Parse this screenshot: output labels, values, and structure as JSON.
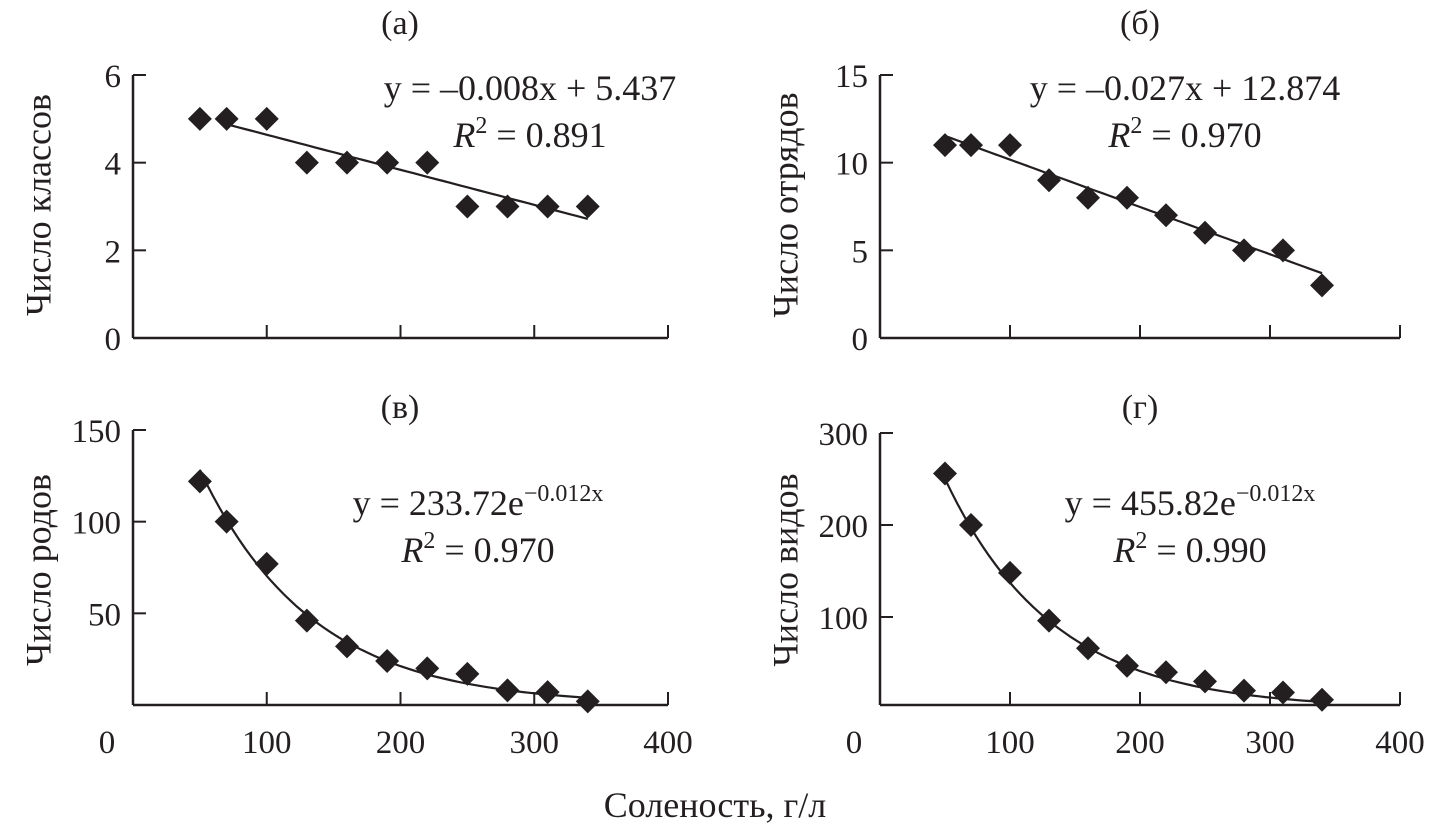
{
  "xlabel": "Соленость, г/л",
  "chart_data": [
    {
      "type": "scatter",
      "panel_label": "(a)",
      "ylabel": "Число классов",
      "xlim": [
        0,
        400
      ],
      "ylim": [
        0,
        6
      ],
      "xticks": [
        0,
        100,
        200,
        300,
        400
      ],
      "show_xtick_labels": false,
      "yticks": [
        0,
        2,
        4,
        6
      ],
      "x": [
        50,
        70,
        100,
        130,
        160,
        190,
        220,
        250,
        280,
        310,
        340
      ],
      "y": [
        5,
        5,
        5,
        4,
        4,
        4,
        4,
        3,
        3,
        3,
        3
      ],
      "trend": {
        "kind": "linear",
        "a": -0.008,
        "b": 5.437,
        "from": 70,
        "to": 340
      },
      "equation": {
        "text": "y = –0.008x + 5.437",
        "exponent": ""
      },
      "r2_label": "R^2",
      "r2": "0.891",
      "grid": false,
      "marker": "diamond",
      "color": "#231f20"
    },
    {
      "type": "scatter",
      "panel_label": "(б)",
      "ylabel": "Число отрядов",
      "xlim": [
        0,
        400
      ],
      "ylim": [
        0,
        15
      ],
      "xticks": [
        0,
        100,
        200,
        300,
        400
      ],
      "show_xtick_labels": false,
      "yticks": [
        0,
        5,
        10,
        15
      ],
      "x": [
        50,
        70,
        100,
        130,
        160,
        190,
        220,
        250,
        280,
        310,
        340
      ],
      "y": [
        11,
        11,
        11,
        9,
        8,
        8,
        7,
        6,
        5,
        5,
        3
      ],
      "trend": {
        "kind": "linear",
        "a": -0.027,
        "b": 12.874,
        "from": 50,
        "to": 340
      },
      "equation": {
        "text": "y = –0.027x + 12.874",
        "exponent": ""
      },
      "r2_label": "R^2",
      "r2": "0.970",
      "grid": false,
      "marker": "diamond",
      "color": "#231f20"
    },
    {
      "type": "scatter",
      "panel_label": "(в)",
      "ylabel": "Число родов",
      "xlim": [
        0,
        400
      ],
      "ylim": [
        0,
        150
      ],
      "xticks": [
        0,
        100,
        200,
        300,
        400
      ],
      "show_xtick_labels": true,
      "yticks": [
        50,
        100,
        150
      ],
      "x": [
        50,
        70,
        100,
        130,
        160,
        190,
        220,
        250,
        280,
        310,
        340
      ],
      "y": [
        122,
        100,
        77,
        46,
        32,
        24,
        20,
        17,
        8,
        7,
        2
      ],
      "trend": {
        "kind": "exponential",
        "a": 233.72,
        "b": -0.012,
        "from": 50,
        "to": 340
      },
      "equation": {
        "text": "y = 233.72e",
        "exponent": "−0.012x"
      },
      "r2_label": "R^2",
      "r2": "0.970",
      "grid": false,
      "marker": "diamond",
      "color": "#231f20"
    },
    {
      "type": "scatter",
      "panel_label": "(г)",
      "ylabel": "Число видов",
      "xlim": [
        0,
        400
      ],
      "ylim": [
        0,
        300
      ],
      "xticks": [
        0,
        100,
        200,
        300,
        400
      ],
      "show_xtick_labels": true,
      "yticks": [
        100,
        200,
        300
      ],
      "x": [
        50,
        70,
        100,
        130,
        160,
        190,
        220,
        250,
        280,
        310,
        340
      ],
      "y": [
        256,
        200,
        148,
        96,
        66,
        47,
        40,
        30,
        20,
        18,
        10
      ],
      "trend": {
        "kind": "exponential",
        "a": 455.82,
        "b": -0.012,
        "from": 50,
        "to": 340
      },
      "equation": {
        "text": "y = 455.82e",
        "exponent": "−0.012x"
      },
      "r2_label": "R^2",
      "r2": "0.990",
      "grid": false,
      "marker": "diamond",
      "color": "#231f20"
    }
  ]
}
